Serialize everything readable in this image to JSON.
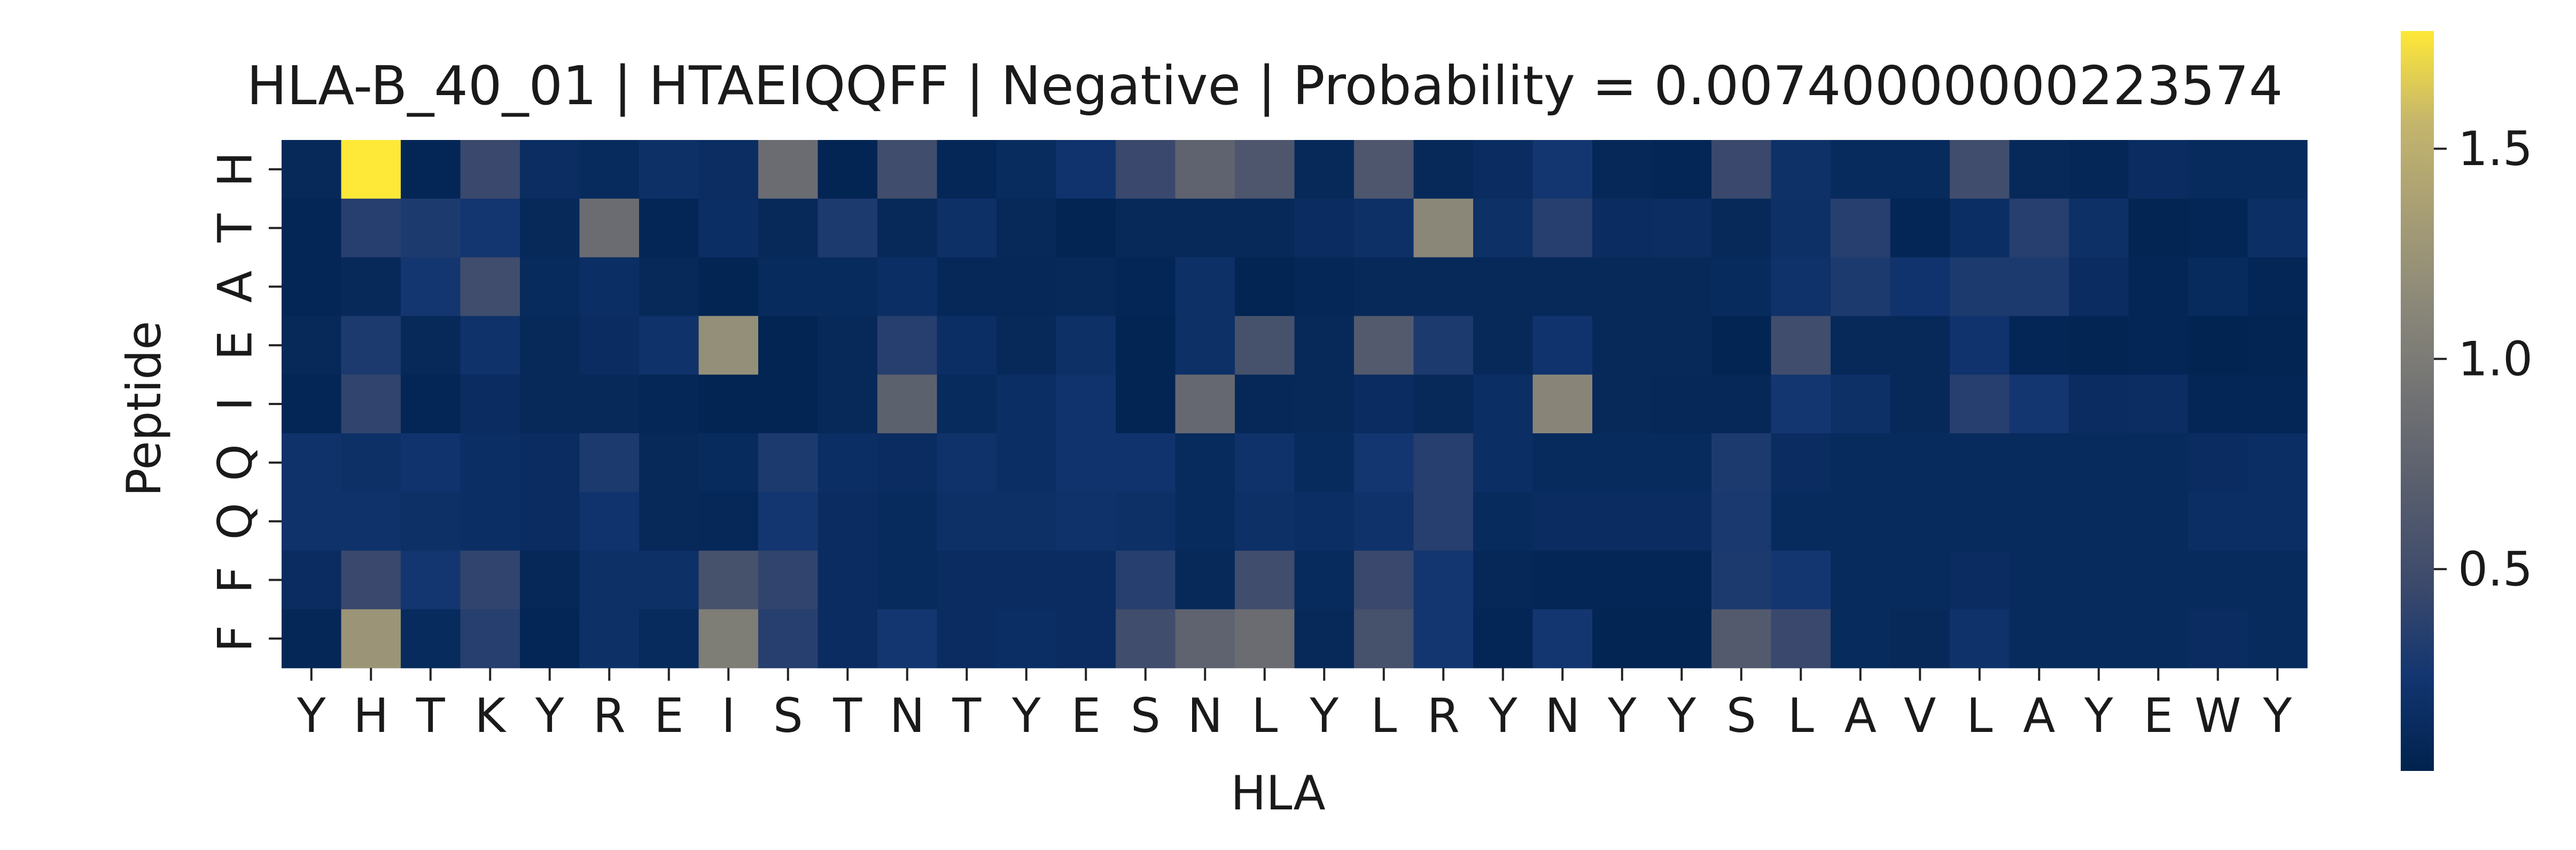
{
  "chart_data": {
    "type": "heatmap",
    "title": "HLA-B_40_01 | HTAEIQQFF | Negative | Probability = 0.00740000000223574",
    "xlabel": "HLA",
    "ylabel": "Peptide",
    "x_ticks": [
      "Y",
      "H",
      "T",
      "K",
      "Y",
      "R",
      "E",
      "I",
      "S",
      "T",
      "N",
      "T",
      "Y",
      "E",
      "S",
      "N",
      "L",
      "Y",
      "L",
      "R",
      "Y",
      "N",
      "Y",
      "Y",
      "S",
      "L",
      "A",
      "V",
      "L",
      "A",
      "Y",
      "E",
      "W",
      "Y"
    ],
    "y_ticks": [
      "H",
      "T",
      "A",
      "E",
      "I",
      "Q",
      "Q",
      "F",
      "F"
    ],
    "colormap": "cividis",
    "colorbar": {
      "range": [
        0.02,
        1.78
      ],
      "ticks": [
        "0.5",
        "1.0",
        "1.5"
      ],
      "tick_values": [
        0.5,
        1.0,
        1.5
      ]
    },
    "values": [
      [
        0.1,
        1.78,
        0.07,
        0.45,
        0.15,
        0.12,
        0.18,
        0.15,
        0.85,
        0.05,
        0.5,
        0.08,
        0.13,
        0.22,
        0.45,
        0.75,
        0.6,
        0.1,
        0.6,
        0.1,
        0.14,
        0.25,
        0.09,
        0.07,
        0.45,
        0.19,
        0.12,
        0.12,
        0.5,
        0.1,
        0.08,
        0.14,
        0.12,
        0.12
      ],
      [
        0.07,
        0.35,
        0.3,
        0.25,
        0.1,
        0.85,
        0.07,
        0.16,
        0.1,
        0.3,
        0.1,
        0.18,
        0.1,
        0.05,
        0.1,
        0.1,
        0.1,
        0.14,
        0.18,
        1.12,
        0.18,
        0.35,
        0.14,
        0.15,
        0.1,
        0.18,
        0.35,
        0.07,
        0.16,
        0.35,
        0.18,
        0.05,
        0.07,
        0.17
      ],
      [
        0.07,
        0.1,
        0.25,
        0.5,
        0.12,
        0.16,
        0.1,
        0.05,
        0.12,
        0.12,
        0.16,
        0.09,
        0.09,
        0.1,
        0.07,
        0.18,
        0.05,
        0.08,
        0.1,
        0.1,
        0.1,
        0.1,
        0.1,
        0.1,
        0.12,
        0.2,
        0.3,
        0.22,
        0.3,
        0.3,
        0.14,
        0.07,
        0.12,
        0.07
      ],
      [
        0.1,
        0.3,
        0.1,
        0.2,
        0.1,
        0.14,
        0.2,
        1.2,
        0.05,
        0.1,
        0.35,
        0.16,
        0.1,
        0.18,
        0.05,
        0.18,
        0.55,
        0.1,
        0.65,
        0.3,
        0.1,
        0.22,
        0.1,
        0.1,
        0.05,
        0.5,
        0.1,
        0.1,
        0.22,
        0.07,
        0.05,
        0.07,
        0.04,
        0.06
      ],
      [
        0.07,
        0.4,
        0.07,
        0.14,
        0.1,
        0.1,
        0.08,
        0.06,
        0.06,
        0.1,
        0.72,
        0.12,
        0.16,
        0.22,
        0.05,
        0.8,
        0.09,
        0.1,
        0.14,
        0.1,
        0.16,
        1.1,
        0.1,
        0.09,
        0.09,
        0.25,
        0.18,
        0.1,
        0.35,
        0.25,
        0.14,
        0.15,
        0.07,
        0.07
      ],
      [
        0.2,
        0.18,
        0.22,
        0.16,
        0.14,
        0.3,
        0.1,
        0.12,
        0.3,
        0.16,
        0.14,
        0.2,
        0.16,
        0.22,
        0.22,
        0.12,
        0.2,
        0.12,
        0.25,
        0.35,
        0.16,
        0.12,
        0.12,
        0.12,
        0.3,
        0.14,
        0.12,
        0.12,
        0.12,
        0.12,
        0.12,
        0.12,
        0.14,
        0.16
      ],
      [
        0.2,
        0.2,
        0.18,
        0.16,
        0.14,
        0.22,
        0.1,
        0.09,
        0.25,
        0.14,
        0.12,
        0.18,
        0.18,
        0.2,
        0.18,
        0.12,
        0.18,
        0.16,
        0.2,
        0.35,
        0.12,
        0.14,
        0.14,
        0.14,
        0.28,
        0.12,
        0.12,
        0.12,
        0.12,
        0.12,
        0.12,
        0.12,
        0.16,
        0.16
      ],
      [
        0.14,
        0.45,
        0.25,
        0.4,
        0.09,
        0.18,
        0.18,
        0.55,
        0.4,
        0.14,
        0.12,
        0.14,
        0.14,
        0.14,
        0.35,
        0.1,
        0.5,
        0.12,
        0.45,
        0.25,
        0.09,
        0.07,
        0.07,
        0.07,
        0.3,
        0.25,
        0.12,
        0.12,
        0.14,
        0.12,
        0.12,
        0.12,
        0.12,
        0.12
      ],
      [
        0.08,
        1.25,
        0.12,
        0.35,
        0.07,
        0.18,
        0.12,
        1.02,
        0.35,
        0.14,
        0.25,
        0.14,
        0.16,
        0.14,
        0.5,
        0.75,
        0.85,
        0.1,
        0.55,
        0.25,
        0.07,
        0.25,
        0.06,
        0.06,
        0.65,
        0.45,
        0.12,
        0.1,
        0.2,
        0.12,
        0.12,
        0.12,
        0.14,
        0.12
      ]
    ]
  }
}
